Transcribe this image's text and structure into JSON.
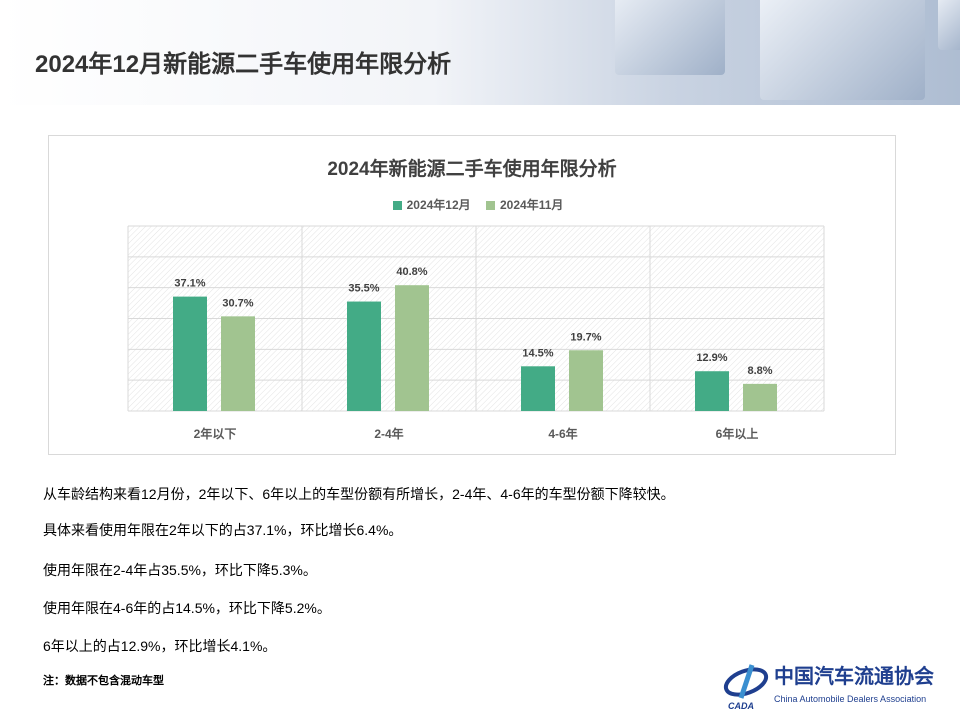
{
  "header": {
    "title": "2024年12月新能源二手车使用年限分析"
  },
  "chart_data": {
    "type": "bar",
    "title": "2024年新能源二手车使用年限分析",
    "categories": [
      "2年以下",
      "2-4年",
      "4-6年",
      "6年以上"
    ],
    "series": [
      {
        "name": "2024年12月",
        "values": [
          37.1,
          35.5,
          14.5,
          12.9
        ],
        "labels": [
          "37.1%",
          "35.5%",
          "14.5%",
          "12.9%"
        ],
        "color": "#43ab86"
      },
      {
        "name": "2024年11月",
        "values": [
          30.7,
          40.8,
          19.7,
          8.8
        ],
        "labels": [
          "30.7%",
          "40.8%",
          "19.7%",
          "8.8%"
        ],
        "color": "#a1c490"
      }
    ],
    "ylim": [
      0,
      60
    ],
    "grid": true,
    "legend": "top",
    "xlabel": "",
    "ylabel": ""
  },
  "text": {
    "p1": "从车龄结构来看12月份，2年以下、6年以上的车型份额有所增长，2-4年、4-6年的车型份额下降较快。",
    "p2": "具体来看使用年限在2年以下的占37.1%，环比增长6.4%。",
    "p3": "使用年限在2-4年占35.5%，环比下降5.3%。",
    "p4": "使用年限在4-6年的占14.5%，环比下降5.2%。",
    "p5": "6年以上的占12.9%，环比增长4.1%。",
    "note": "注：数据不包含混动车型"
  },
  "logo": {
    "cn": "中国汽车流通协会",
    "en": "China Automobile Dealers Association",
    "mark": "CADA"
  }
}
